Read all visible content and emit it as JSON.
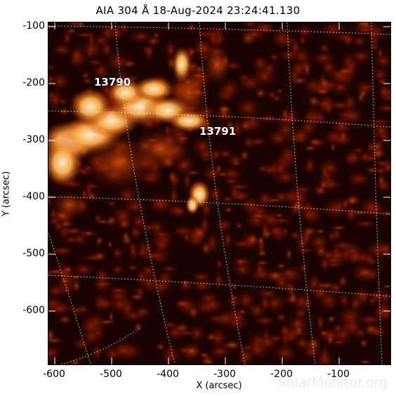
{
  "title": "AIA 304 Å 18-Aug-2024 23:24:41.130",
  "xlabel": "X (arcsec)",
  "ylabel": "Y (arcsec)",
  "x_ticks": [
    "-600",
    "-500",
    "-400",
    "-300",
    "-200",
    "-100"
  ],
  "y_ticks": [
    "-100",
    "-200",
    "-300",
    "-400",
    "-500",
    "-600"
  ],
  "active_regions": [
    "13790",
    "13791"
  ],
  "watermark": "SolarMonitor.org",
  "colors": {
    "dark": "#120200",
    "mid": "#8a1c00",
    "bright": "#ff7a1a",
    "hot": "#fff0c8"
  }
}
